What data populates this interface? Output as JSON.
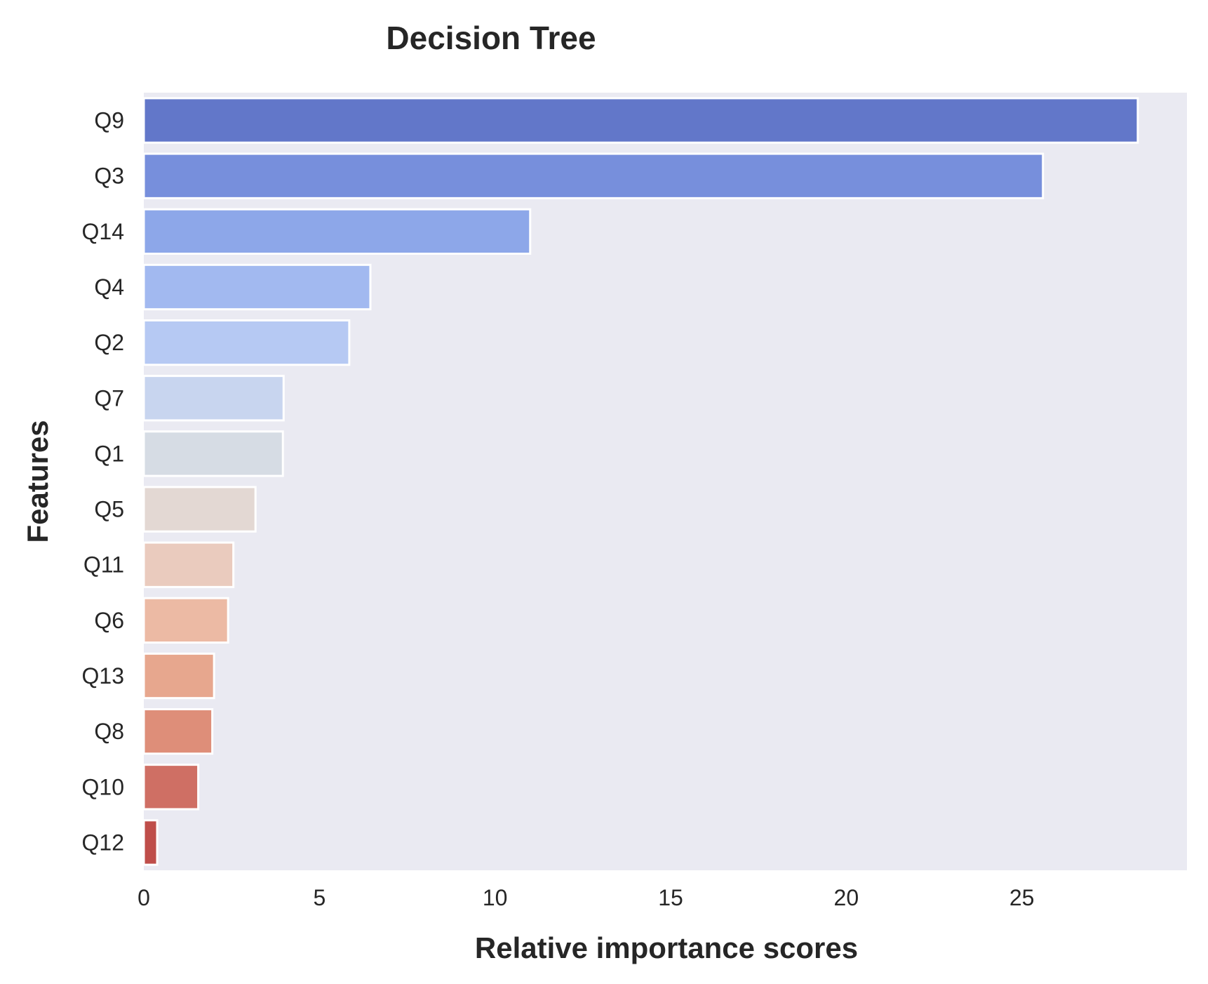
{
  "chart_data": {
    "type": "bar",
    "orientation": "horizontal",
    "title": "Decision Tree",
    "xlabel": "Relative importance scores",
    "ylabel": "Features",
    "xlim": [
      0,
      29.7
    ],
    "xticks": [
      0,
      5,
      10,
      15,
      20,
      25
    ],
    "grid": false,
    "legend": "none",
    "plot_background": "#eaeaf2",
    "categories": [
      "Q9",
      "Q3",
      "Q14",
      "Q4",
      "Q2",
      "Q7",
      "Q1",
      "Q5",
      "Q11",
      "Q6",
      "Q13",
      "Q8",
      "Q10",
      "Q12"
    ],
    "values": [
      28.3,
      25.6,
      11.0,
      6.45,
      5.85,
      3.98,
      3.96,
      3.18,
      2.55,
      2.4,
      2.0,
      1.95,
      1.55,
      0.38
    ],
    "colors": [
      "#6277c9",
      "#778fdc",
      "#8da7e9",
      "#a2b9f0",
      "#b6c9f3",
      "#c8d5ef",
      "#d6dce4",
      "#e3d8d3",
      "#eacbbe",
      "#ecbaa4",
      "#e7a78e",
      "#de8e79",
      "#cf6f64",
      "#bf4e4a"
    ]
  }
}
